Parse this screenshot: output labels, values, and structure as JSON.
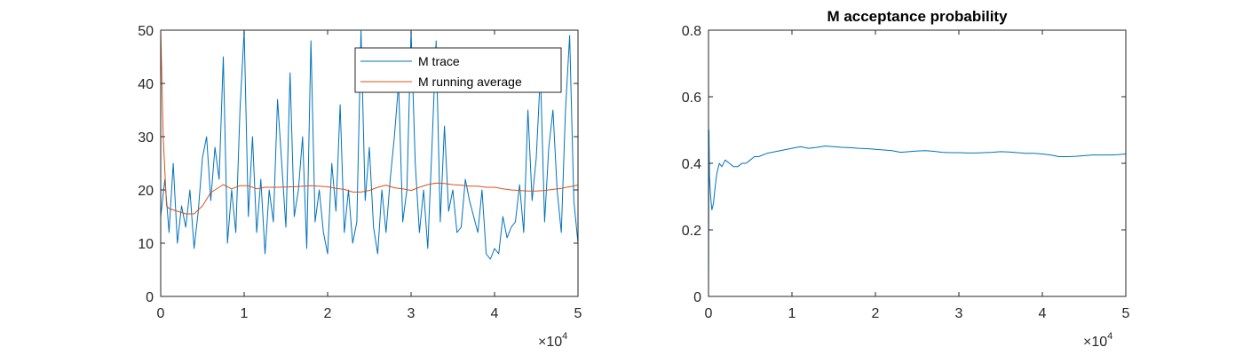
{
  "chart_data": [
    {
      "type": "line",
      "title": "",
      "xlabel": "",
      "ylabel": "",
      "xlim": [
        0,
        50000
      ],
      "ylim": [
        0,
        50
      ],
      "x_tick_labels": [
        "0",
        "1",
        "2",
        "3",
        "4",
        "5"
      ],
      "y_tick_labels": [
        "0",
        "10",
        "20",
        "30",
        "40",
        "50"
      ],
      "x_exponent": {
        "base": "×10",
        "power": "4"
      },
      "legend": {
        "position": "top-right",
        "entries": [
          "M trace",
          "M running average"
        ]
      },
      "grid": false,
      "colors": {
        "trace": "#0072BD",
        "average": "#D95319"
      },
      "series": [
        {
          "name": "M trace",
          "x": [
            0,
            500,
            1000,
            1500,
            2000,
            2500,
            3000,
            3500,
            4000,
            4500,
            5000,
            5500,
            6000,
            6500,
            7000,
            7500,
            8000,
            8500,
            9000,
            9500,
            10000,
            10500,
            11000,
            11500,
            12000,
            12500,
            13000,
            13500,
            14000,
            14500,
            15000,
            15500,
            16000,
            16500,
            17000,
            17500,
            18000,
            18500,
            19000,
            19500,
            20000,
            20500,
            21000,
            21500,
            22000,
            22500,
            23000,
            23500,
            24000,
            24500,
            25000,
            25500,
            26000,
            26500,
            27000,
            27500,
            28000,
            28500,
            29000,
            29500,
            30000,
            30500,
            31000,
            31500,
            32000,
            32500,
            33000,
            33500,
            34000,
            34500,
            35000,
            35500,
            36000,
            36500,
            37000,
            37500,
            38000,
            38500,
            39000,
            39500,
            40000,
            40500,
            41000,
            41500,
            42000,
            42500,
            43000,
            43500,
            44000,
            44500,
            45000,
            45500,
            46000,
            46500,
            47000,
            47500,
            48000,
            48500,
            49000,
            49500,
            50000
          ],
          "y": [
            15,
            22,
            12,
            25,
            10,
            17,
            13,
            20,
            9,
            16,
            26,
            30,
            18,
            28,
            22,
            45,
            10,
            20,
            12,
            35,
            50,
            15,
            30,
            12,
            22,
            8,
            20,
            14,
            37,
            25,
            13,
            42,
            15,
            20,
            30,
            9,
            48,
            14,
            20,
            12,
            8,
            25,
            16,
            36,
            12,
            20,
            10,
            14,
            50,
            18,
            28,
            13,
            8,
            20,
            12,
            22,
            30,
            40,
            14,
            20,
            50,
            25,
            12,
            20,
            9,
            28,
            48,
            14,
            32,
            16,
            20,
            12,
            13,
            22,
            18,
            15,
            12,
            20,
            8,
            7,
            9,
            8,
            15,
            11,
            13,
            14,
            21,
            12,
            35,
            18,
            26,
            42,
            14,
            28,
            35,
            20,
            12,
            35,
            49,
            18,
            10
          ]
        },
        {
          "name": "M running average",
          "x": [
            0,
            300,
            700,
            1000,
            2000,
            3000,
            4000,
            5000,
            6000,
            7000,
            7500,
            8500,
            9500,
            10500,
            11500,
            12500,
            14000,
            16000,
            18000,
            20000,
            21000,
            22000,
            23000,
            24000,
            25000,
            26000,
            27000,
            28000,
            29000,
            30000,
            31000,
            32000,
            33000,
            34000,
            35000,
            36000,
            37000,
            38000,
            39000,
            40000,
            41000,
            42000,
            43000,
            44000,
            45000,
            46000,
            47000,
            48000,
            49000,
            50000
          ],
          "y": [
            50,
            30,
            17,
            16.5,
            16,
            15.5,
            15.5,
            17,
            19.5,
            20.5,
            21,
            20.2,
            20.8,
            20.8,
            20.2,
            20.5,
            20.5,
            20.6,
            20.8,
            20.6,
            20.3,
            20.1,
            19.6,
            19.6,
            19.9,
            20.5,
            20.9,
            20.4,
            20.2,
            19.9,
            20.5,
            21,
            21.3,
            21.2,
            21.0,
            20.9,
            20.7,
            20.7,
            20.5,
            20.5,
            20.2,
            20.0,
            19.9,
            19.8,
            19.8,
            19.9,
            20.1,
            20.3,
            20.6,
            20.9
          ]
        }
      ]
    },
    {
      "type": "line",
      "title": "M acceptance probability",
      "xlabel": "",
      "ylabel": "",
      "xlim": [
        0,
        50000
      ],
      "ylim": [
        0,
        0.8
      ],
      "x_tick_labels": [
        "0",
        "1",
        "2",
        "3",
        "4",
        "5"
      ],
      "y_tick_labels": [
        "0",
        "0.2",
        "0.4",
        "0.6",
        "0.8"
      ],
      "x_exponent": {
        "base": "×10",
        "power": "4"
      },
      "grid": false,
      "colors": {
        "line": "#0072BD"
      },
      "series": [
        {
          "name": "",
          "x": [
            0,
            50,
            120,
            250,
            400,
            600,
            800,
            1000,
            1300,
            1600,
            2000,
            2500,
            3000,
            3500,
            4000,
            4500,
            5000,
            5500,
            6000,
            7000,
            8000,
            9000,
            10000,
            11000,
            12000,
            13000,
            14000,
            15000,
            16000,
            17000,
            18000,
            19000,
            20000,
            21000,
            22000,
            23000,
            24000,
            25000,
            26000,
            27000,
            28000,
            29000,
            30000,
            31000,
            32000,
            33000,
            34000,
            35000,
            36000,
            37000,
            38000,
            39000,
            40000,
            41000,
            42000,
            43000,
            44000,
            45000,
            46000,
            47000,
            48000,
            49000,
            50000
          ],
          "y": [
            0.0,
            0.5,
            0.36,
            0.3,
            0.26,
            0.28,
            0.33,
            0.37,
            0.4,
            0.39,
            0.41,
            0.4,
            0.39,
            0.39,
            0.4,
            0.4,
            0.41,
            0.42,
            0.42,
            0.43,
            0.435,
            0.44,
            0.445,
            0.45,
            0.445,
            0.448,
            0.452,
            0.45,
            0.448,
            0.447,
            0.445,
            0.444,
            0.442,
            0.44,
            0.438,
            0.433,
            0.435,
            0.437,
            0.438,
            0.436,
            0.433,
            0.432,
            0.432,
            0.431,
            0.431,
            0.432,
            0.433,
            0.435,
            0.434,
            0.432,
            0.43,
            0.43,
            0.428,
            0.425,
            0.42,
            0.42,
            0.421,
            0.423,
            0.425,
            0.425,
            0.425,
            0.426,
            0.428
          ]
        }
      ]
    }
  ]
}
